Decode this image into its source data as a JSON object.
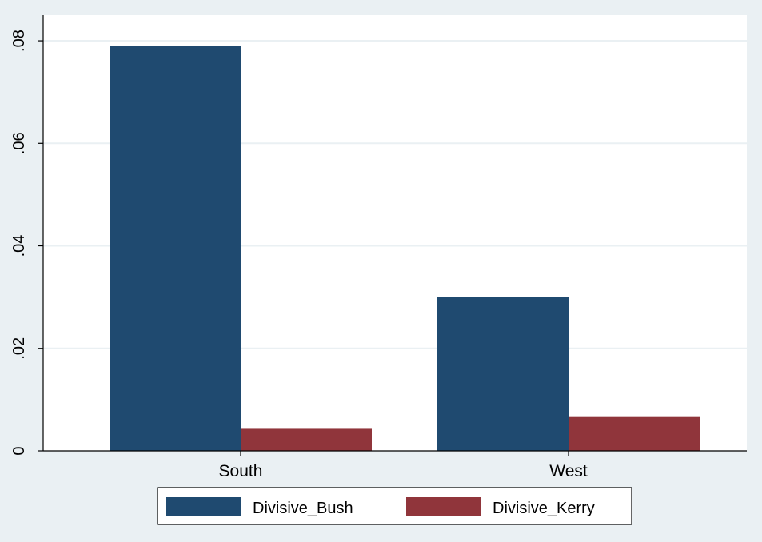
{
  "chart_data": {
    "type": "bar",
    "title": "",
    "xlabel": "",
    "ylabel": "",
    "categories": [
      "South",
      "West"
    ],
    "series": [
      {
        "name": "Divisive_Bush",
        "values": [
          0.079,
          0.03
        ],
        "color": "#1f4a70"
      },
      {
        "name": "Divisive_Kerry",
        "values": [
          0.0043,
          0.0066
        ],
        "color": "#90353b"
      }
    ],
    "ylim": [
      0,
      0.085
    ],
    "yticks": [
      0,
      0.02,
      0.04,
      0.06,
      0.08
    ],
    "ytick_labels": [
      "0",
      ".02",
      ".04",
      ".06",
      ".08"
    ],
    "grid": true,
    "legend_position": "bottom",
    "colors": {
      "page_background": "#eaf0f3",
      "plot_background": "#ffffff",
      "gridline": "#eaf0f3",
      "axis": "#000000"
    }
  }
}
